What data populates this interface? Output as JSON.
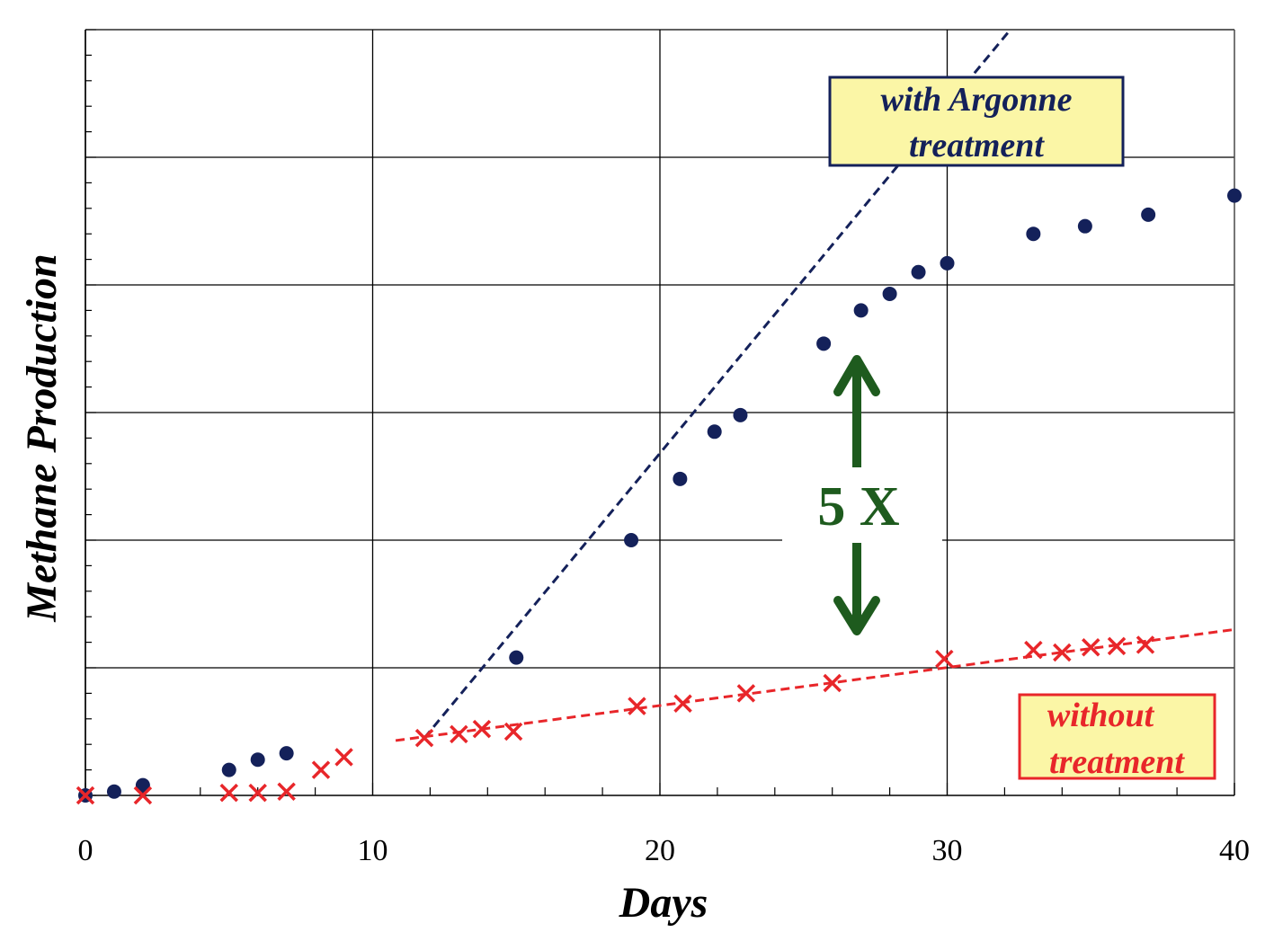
{
  "chart_data": {
    "type": "scatter",
    "title": "",
    "xlabel": "Days",
    "ylabel": "Methane Production",
    "xlim": [
      0,
      40
    ],
    "ylim": [
      0,
      6
    ],
    "x_ticks": [
      0,
      10,
      20,
      30,
      40
    ],
    "grid": true,
    "series": [
      {
        "name": "with Argonne treatment",
        "marker": "circle",
        "color": "#14215a",
        "x": [
          0,
          1,
          2,
          5,
          6,
          7,
          15,
          19,
          20.7,
          21.9,
          22.8,
          25.7,
          27.0,
          28.0,
          29.0,
          30.0,
          33.0,
          34.8,
          37.0,
          40.0
        ],
        "y": [
          0.0,
          0.03,
          0.08,
          0.2,
          0.28,
          0.33,
          1.08,
          2.0,
          2.48,
          2.85,
          2.98,
          3.54,
          3.8,
          3.93,
          4.1,
          4.17,
          4.4,
          4.46,
          4.55,
          4.7
        ]
      },
      {
        "name": "without treatment",
        "marker": "x",
        "color": "#e8262a",
        "x": [
          0,
          2,
          5,
          6,
          7,
          8.2,
          9.0,
          11.8,
          13.0,
          13.8,
          14.9,
          19.2,
          20.8,
          23.0,
          26.0,
          29.9,
          33.0,
          34.0,
          35.0,
          35.9,
          36.9
        ],
        "y": [
          0.0,
          0.0,
          0.02,
          0.02,
          0.03,
          0.2,
          0.3,
          0.45,
          0.48,
          0.52,
          0.5,
          0.7,
          0.72,
          0.8,
          0.88,
          1.07,
          1.14,
          1.12,
          1.16,
          1.17,
          1.18
        ]
      }
    ],
    "trendlines": [
      {
        "series": "with Argonne treatment",
        "color": "#14215a",
        "from": [
          11.8,
          0.45
        ],
        "to": [
          32.2,
          6.0
        ]
      },
      {
        "series": "without treatment",
        "color": "#e8262a",
        "from": [
          10.8,
          0.43
        ],
        "to": [
          40.0,
          1.3
        ]
      }
    ],
    "annotations": {
      "treated_label_line1": "with Argonne",
      "treated_label_line2": "treatment",
      "untreated_label_line1": "without",
      "untreated_label_line2": "treatment",
      "multiplier": "5 X"
    },
    "colors": {
      "treated": "#14215a",
      "untreated": "#e8262a",
      "treated_box_fill": "#fbf6a6",
      "untreated_box_fill": "#fbf6a6",
      "arrow": "#1e5b1e"
    }
  }
}
